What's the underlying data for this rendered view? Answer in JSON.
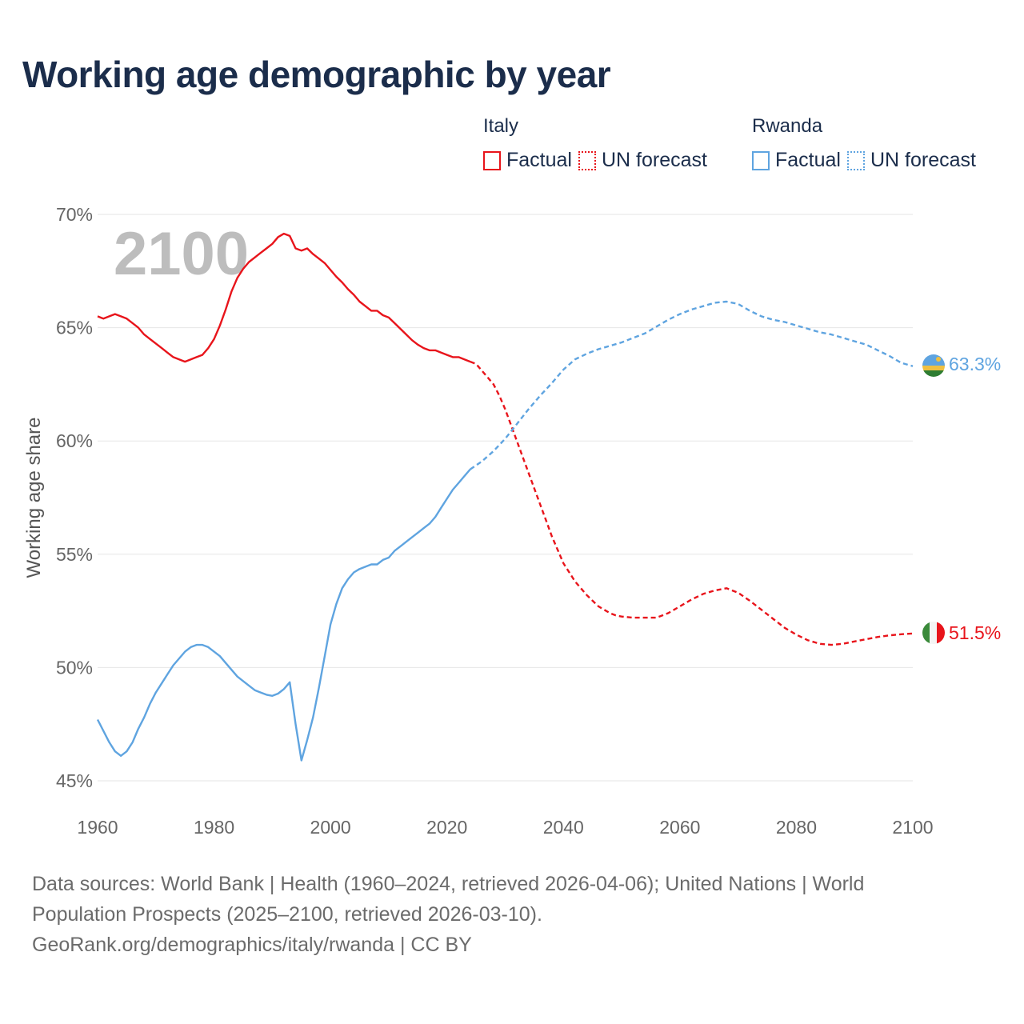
{
  "title": "Working age demographic by year",
  "legend": {
    "groups": [
      {
        "country": "Italy",
        "factual_label": "Factual",
        "forecast_label": "UN forecast",
        "color": "#e8141b"
      },
      {
        "country": "Rwanda",
        "factual_label": "Factual",
        "forecast_label": "UN forecast",
        "color": "#5fa4e0"
      }
    ]
  },
  "year_watermark": "2100",
  "footer": {
    "sources_line1": "Data sources: World Bank | Health (1960–2024, retrieved 2026-04-06); United Nations | World",
    "sources_line2": "Population Prospects (2025–2100, retrieved 2026-03-10).",
    "attribution": "GeoRank.org/demographics/italy/rwanda | CC BY"
  },
  "chart_data": {
    "type": "line",
    "title": "Working age demographic by year",
    "xlabel": "",
    "ylabel": "Working age share",
    "xlim": [
      1960,
      2100
    ],
    "ylim": [
      45,
      70
    ],
    "x_ticks": [
      1960,
      1980,
      2000,
      2020,
      2040,
      2060,
      2080,
      2100
    ],
    "x_tick_labels": [
      "1960",
      "1980",
      "2000",
      "2020",
      "2040",
      "2060",
      "2080",
      "2100"
    ],
    "y_ticks": [
      45,
      50,
      55,
      60,
      65,
      70
    ],
    "y_tick_labels": [
      "45%",
      "50%",
      "55%",
      "60%",
      "65%",
      "70%"
    ],
    "grid": true,
    "series": [
      {
        "name": "Italy",
        "color": "#e8141b",
        "factual": {
          "x": [
            1960,
            1961,
            1962,
            1963,
            1964,
            1965,
            1966,
            1967,
            1968,
            1969,
            1970,
            1971,
            1972,
            1973,
            1974,
            1975,
            1976,
            1977,
            1978,
            1979,
            1980,
            1981,
            1982,
            1983,
            1984,
            1985,
            1986,
            1987,
            1988,
            1989,
            1990,
            1991,
            1992,
            1993,
            1994,
            1995,
            1996,
            1997,
            1998,
            1999,
            2000,
            2001,
            2002,
            2003,
            2004,
            2005,
            2006,
            2007,
            2008,
            2009,
            2010,
            2011,
            2012,
            2013,
            2014,
            2015,
            2016,
            2017,
            2018,
            2019,
            2020,
            2021,
            2022,
            2023,
            2024
          ],
          "y": [
            65.5,
            65.4,
            65.5,
            65.6,
            65.5,
            65.4,
            65.2,
            65.0,
            64.7,
            64.5,
            64.3,
            64.1,
            63.9,
            63.7,
            63.6,
            63.5,
            63.6,
            63.7,
            63.8,
            64.1,
            64.5,
            65.1,
            65.8,
            66.6,
            67.2,
            67.6,
            67.9,
            68.1,
            68.3,
            68.5,
            68.7,
            69.0,
            69.15,
            69.05,
            68.5,
            68.4,
            68.5,
            68.25,
            68.05,
            67.85,
            67.55,
            67.25,
            67.0,
            66.7,
            66.45,
            66.15,
            65.95,
            65.75,
            65.75,
            65.55,
            65.45,
            65.2,
            64.95,
            64.7,
            64.45,
            64.25,
            64.1,
            64.0,
            64.0,
            63.9,
            63.8,
            63.7,
            63.7,
            63.6,
            63.5
          ]
        },
        "forecast": {
          "x": [
            2024,
            2025,
            2026,
            2027,
            2028,
            2029,
            2030,
            2031,
            2032,
            2033,
            2034,
            2035,
            2036,
            2037,
            2038,
            2039,
            2040,
            2041,
            2042,
            2043,
            2044,
            2045,
            2046,
            2047,
            2048,
            2049,
            2050,
            2052,
            2054,
            2056,
            2058,
            2060,
            2062,
            2064,
            2066,
            2068,
            2070,
            2072,
            2074,
            2076,
            2078,
            2080,
            2082,
            2084,
            2086,
            2088,
            2090,
            2092,
            2094,
            2096,
            2098,
            2100
          ],
          "y": [
            63.5,
            63.4,
            63.1,
            62.8,
            62.5,
            62.0,
            61.4,
            60.7,
            60.0,
            59.3,
            58.6,
            57.9,
            57.2,
            56.5,
            55.8,
            55.2,
            54.6,
            54.2,
            53.8,
            53.5,
            53.2,
            52.95,
            52.7,
            52.55,
            52.4,
            52.3,
            52.25,
            52.2,
            52.2,
            52.2,
            52.4,
            52.7,
            53.0,
            53.25,
            53.4,
            53.5,
            53.3,
            52.95,
            52.55,
            52.15,
            51.75,
            51.45,
            51.2,
            51.05,
            51.0,
            51.05,
            51.15,
            51.25,
            51.35,
            51.42,
            51.47,
            51.5
          ]
        },
        "end_label": "51.5%"
      },
      {
        "name": "Rwanda",
        "color": "#5fa4e0",
        "factual": {
          "x": [
            1960,
            1961,
            1962,
            1963,
            1964,
            1965,
            1966,
            1967,
            1968,
            1969,
            1970,
            1971,
            1972,
            1973,
            1974,
            1975,
            1976,
            1977,
            1978,
            1979,
            1980,
            1981,
            1982,
            1983,
            1984,
            1985,
            1986,
            1987,
            1988,
            1989,
            1990,
            1991,
            1992,
            1993,
            1994,
            1995,
            1996,
            1997,
            1998,
            1999,
            2000,
            2001,
            2002,
            2003,
            2004,
            2005,
            2006,
            2007,
            2008,
            2009,
            2010,
            2011,
            2012,
            2013,
            2014,
            2015,
            2016,
            2017,
            2018,
            2019,
            2020,
            2021,
            2022,
            2023,
            2024
          ],
          "y": [
            47.7,
            47.2,
            46.7,
            46.3,
            46.1,
            46.3,
            46.7,
            47.3,
            47.8,
            48.4,
            48.9,
            49.3,
            49.7,
            50.1,
            50.4,
            50.7,
            50.9,
            51.0,
            51.0,
            50.9,
            50.7,
            50.5,
            50.2,
            49.9,
            49.6,
            49.4,
            49.2,
            49.0,
            48.9,
            48.8,
            48.75,
            48.85,
            49.05,
            49.35,
            47.5,
            45.9,
            46.8,
            47.8,
            49.1,
            50.5,
            51.9,
            52.8,
            53.5,
            53.9,
            54.2,
            54.35,
            54.45,
            54.55,
            54.55,
            54.75,
            54.85,
            55.15,
            55.35,
            55.55,
            55.75,
            55.95,
            56.15,
            56.35,
            56.65,
            57.05,
            57.45,
            57.85,
            58.15,
            58.45,
            58.75
          ]
        },
        "forecast": {
          "x": [
            2024,
            2026,
            2028,
            2030,
            2032,
            2034,
            2036,
            2038,
            2040,
            2042,
            2044,
            2046,
            2048,
            2050,
            2052,
            2054,
            2056,
            2058,
            2060,
            2062,
            2064,
            2066,
            2068,
            2070,
            2072,
            2074,
            2076,
            2078,
            2080,
            2082,
            2084,
            2086,
            2088,
            2090,
            2092,
            2094,
            2096,
            2098,
            2100
          ],
          "y": [
            58.75,
            59.1,
            59.55,
            60.1,
            60.75,
            61.4,
            62.0,
            62.55,
            63.15,
            63.6,
            63.85,
            64.05,
            64.2,
            64.35,
            64.55,
            64.75,
            65.05,
            65.35,
            65.6,
            65.8,
            65.95,
            66.1,
            66.15,
            66.05,
            65.75,
            65.5,
            65.35,
            65.25,
            65.1,
            64.95,
            64.8,
            64.7,
            64.55,
            64.4,
            64.25,
            64.0,
            63.75,
            63.45,
            63.3
          ]
        },
        "end_label": "63.3%"
      }
    ]
  }
}
